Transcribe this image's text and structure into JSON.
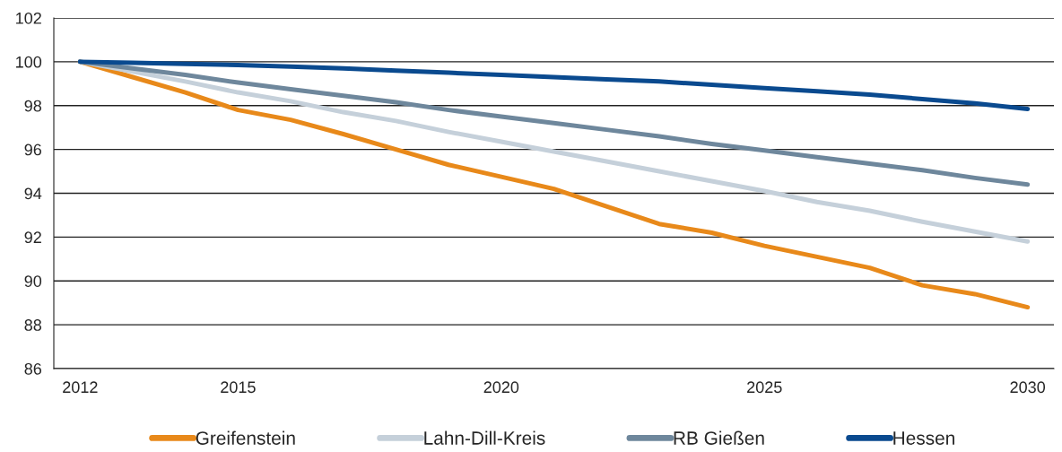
{
  "chart_data": {
    "type": "line",
    "categories": [
      "2012",
      null,
      null,
      "2015",
      null,
      null,
      null,
      null,
      "2020",
      null,
      null,
      null,
      null,
      "2025",
      null,
      null,
      null,
      null,
      "2030"
    ],
    "ylim": [
      86,
      102
    ],
    "yticks": [
      86,
      88,
      90,
      92,
      94,
      96,
      98,
      100,
      102
    ],
    "grid": "y",
    "legend": "bottom",
    "marker": "none",
    "line_style": "solid",
    "series": [
      {
        "name": "Greifenstein",
        "color": "#e8891a",
        "values": [
          100,
          99.3,
          98.6,
          97.8,
          97.35,
          96.7,
          96.0,
          95.3,
          94.75,
          94.2,
          93.4,
          92.6,
          92.2,
          91.6,
          91.1,
          90.6,
          89.8,
          89.4,
          88.8
        ]
      },
      {
        "name": "Lahn-Dill-Kreis",
        "color": "#c5d0da",
        "values": [
          100,
          99.55,
          99.1,
          98.6,
          98.2,
          97.7,
          97.3,
          96.8,
          96.35,
          95.9,
          95.45,
          95.0,
          94.55,
          94.1,
          93.6,
          93.2,
          92.7,
          92.25,
          91.8
        ]
      },
      {
        "name": "RB Gießen",
        "color": "#6e879c",
        "values": [
          100,
          99.7,
          99.4,
          99.05,
          98.75,
          98.45,
          98.15,
          97.8,
          97.5,
          97.2,
          96.9,
          96.6,
          96.25,
          95.95,
          95.65,
          95.35,
          95.05,
          94.7,
          94.4
        ]
      },
      {
        "name": "Hessen",
        "color": "#0a4a8f",
        "values": [
          100,
          99.95,
          99.9,
          99.85,
          99.78,
          99.7,
          99.6,
          99.5,
          99.4,
          99.3,
          99.2,
          99.1,
          98.95,
          98.8,
          98.65,
          98.5,
          98.3,
          98.1,
          97.85
        ]
      }
    ]
  }
}
